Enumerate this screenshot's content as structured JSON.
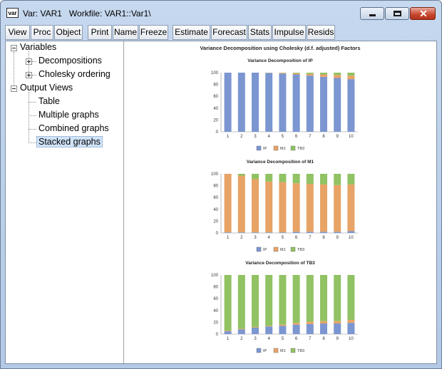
{
  "window": {
    "title": "Var: VAR1   Workfile: VAR1::Var1\\",
    "icon_label": "var",
    "controls": {
      "close_glyph": "✕"
    }
  },
  "toolbar": {
    "buttons": [
      "View",
      "Proc",
      "Object",
      "Print",
      "Name",
      "Freeze",
      "Estimate",
      "Forecast",
      "Stats",
      "Impulse",
      "Resids"
    ]
  },
  "tree": {
    "variables": "Variables",
    "decompositions": "Decompositions",
    "cholesky": "Cholesky ordering",
    "output_views": "Output Views",
    "table": "Table",
    "multiple": "Multiple graphs",
    "combined": "Combined graphs",
    "stacked": "Stacked graphs"
  },
  "graph": {
    "title": "Variance Decomposition using Cholesky (d.f. adjusted) Factors"
  },
  "colors": {
    "IP": "#7b96d0",
    "M1": "#e8a366",
    "TB3": "#91c263"
  },
  "chart_data": [
    {
      "type": "bar",
      "stacked": true,
      "title": "Variance Decomposition of IP",
      "categories": [
        "1",
        "2",
        "3",
        "4",
        "5",
        "6",
        "7",
        "8",
        "9",
        "10"
      ],
      "ylim": [
        0,
        100
      ],
      "yticks": [
        0,
        20,
        40,
        60,
        80,
        100
      ],
      "legend": "bottom",
      "series": [
        {
          "name": "IP",
          "values": [
            100,
            100,
            100,
            99.5,
            98.5,
            97,
            95,
            93,
            91,
            89
          ]
        },
        {
          "name": "M1",
          "values": [
            0,
            0,
            0,
            0.3,
            1.0,
            2.0,
            3.0,
            4.0,
            5.0,
            6.0
          ]
        },
        {
          "name": "TB3",
          "values": [
            0,
            0,
            0,
            0.2,
            0.5,
            1.0,
            2.0,
            3.0,
            4.0,
            5.0
          ]
        }
      ]
    },
    {
      "type": "bar",
      "stacked": true,
      "title": "Variance Decomposition of M1",
      "categories": [
        "1",
        "2",
        "3",
        "4",
        "5",
        "6",
        "7",
        "8",
        "9",
        "10"
      ],
      "ylim": [
        0,
        100
      ],
      "yticks": [
        0,
        20,
        40,
        60,
        80,
        100
      ],
      "legend": "bottom",
      "series": [
        {
          "name": "IP",
          "values": [
            1,
            1,
            1,
            1,
            1,
            2,
            2,
            2,
            2,
            3
          ]
        },
        {
          "name": "M1",
          "values": [
            99,
            96,
            90,
            86,
            85,
            82,
            81,
            80,
            79,
            79
          ]
        },
        {
          "name": "TB3",
          "values": [
            0,
            3,
            9,
            13,
            14,
            16,
            17,
            18,
            19,
            18
          ]
        }
      ]
    },
    {
      "type": "bar",
      "stacked": true,
      "title": "Variance Decomposition of TB3",
      "categories": [
        "1",
        "2",
        "3",
        "4",
        "5",
        "6",
        "7",
        "8",
        "9",
        "10"
      ],
      "ylim": [
        0,
        100
      ],
      "yticks": [
        0,
        20,
        40,
        60,
        80,
        100
      ],
      "legend": "bottom",
      "series": [
        {
          "name": "IP",
          "values": [
            5,
            8,
            11,
            13,
            14,
            16,
            17,
            18,
            18,
            19
          ]
        },
        {
          "name": "M1",
          "values": [
            1,
            1,
            1,
            1,
            2,
            3,
            4,
            4,
            4,
            5
          ]
        },
        {
          "name": "TB3",
          "values": [
            94,
            91,
            88,
            86,
            84,
            81,
            79,
            78,
            78,
            76
          ]
        }
      ]
    }
  ]
}
